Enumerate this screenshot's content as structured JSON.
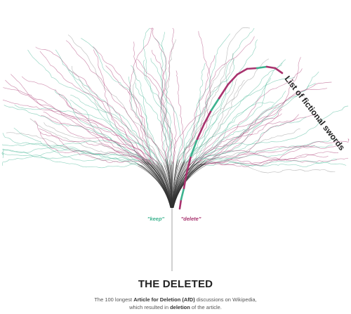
{
  "title": "THE DELETED",
  "description": {
    "line1_pre": "The 100 longest ",
    "line1_bold": "Article for Deletion (AfD)",
    "line1_post": " discussions on Wikipedia,",
    "line2_pre": "which resulted in ",
    "line2_bold": "deletion",
    "line2_post": " of the article."
  },
  "colors": {
    "keep": "#3db38f",
    "delete": "#a8336e",
    "stem": "#999999",
    "trunk": "#333333"
  },
  "chart_data": {
    "type": "tree",
    "branch_labels": {
      "keep": "\"keep\"",
      "delete": "\"delete\""
    },
    "highlight_label": "List of fictional swords",
    "discussion_count": 100,
    "highlighted_path": [
      "delete",
      "keep",
      "delete",
      "delete",
      "keep",
      "delete",
      "delete",
      "keep",
      "delete",
      "delete",
      "delete",
      "delete",
      "keep",
      "delete",
      "delete",
      "keep",
      "delete",
      "delete",
      "keep",
      "delete",
      "delete",
      "delete",
      "keep",
      "delete",
      "delete",
      "delete",
      "delete",
      "keep",
      "delete",
      "delete"
    ]
  }
}
